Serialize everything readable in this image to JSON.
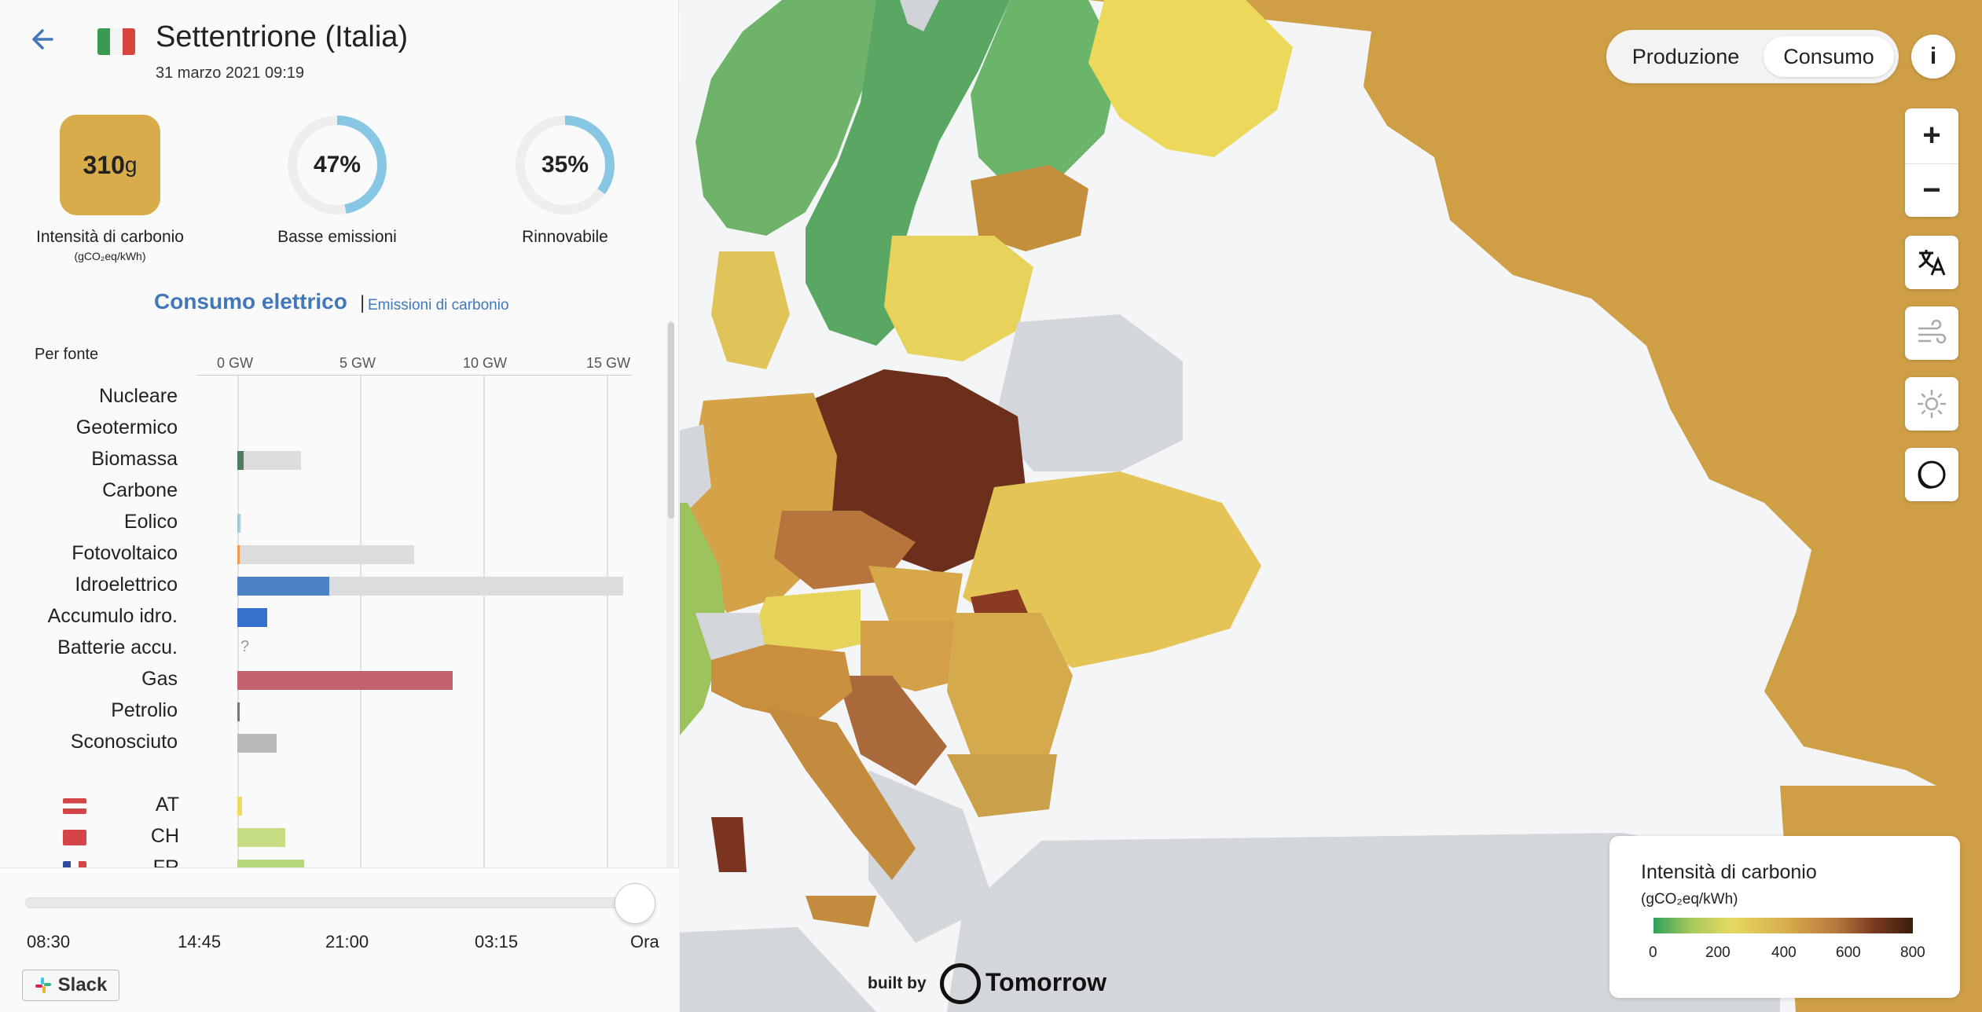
{
  "header": {
    "zone_title": "Settentrione (Italia)",
    "date": "31 marzo 2021 09:19"
  },
  "metrics": {
    "carbon_value": "310",
    "carbon_unit": "g",
    "carbon_label": "Intensità di carbonio",
    "carbon_sub": "(gCO₂eq/kWh)",
    "low_emissions_value": "47%",
    "low_emissions_fraction": 0.47,
    "low_emissions_label": "Basse emissioni",
    "renewable_value": "35%",
    "renewable_fraction": 0.35,
    "renewable_label": "Rinnovabile"
  },
  "tabs": {
    "consumo": "Consumo elettrico",
    "separator": "|",
    "emissioni": "Emissioni di carbonio"
  },
  "chart": {
    "per_fonte": "Per fonte",
    "axis_ticks": [
      "0 GW",
      "5 GW",
      "10 GW",
      "15 GW"
    ],
    "sources": [
      {
        "label": "Nucleare",
        "value_gw": 0,
        "capacity_gw": 0,
        "color": "#aeb800"
      },
      {
        "label": "Geotermico",
        "value_gw": 0,
        "capacity_gw": 0,
        "color": "#a45a1f"
      },
      {
        "label": "Biomassa",
        "value_gw": 0.25,
        "capacity_gw": 2.6,
        "color": "#4f7b5e"
      },
      {
        "label": "Carbone",
        "value_gw": 0,
        "capacity_gw": 0,
        "color": "#222222"
      },
      {
        "label": "Eolico",
        "value_gw": 0.1,
        "capacity_gw": 0.15,
        "color": "#9ac8d3"
      },
      {
        "label": "Fotovoltaico",
        "value_gw": 0.1,
        "capacity_gw": 7.2,
        "color": "#f09c4a"
      },
      {
        "label": "Idroelettrico",
        "value_gw": 3.75,
        "capacity_gw": 15.7,
        "color": "#4b83c4"
      },
      {
        "label": "Accumulo idro.",
        "value_gw": 1.2,
        "capacity_gw": 1.2,
        "color": "#3572cd"
      },
      {
        "label": "Batterie accu.",
        "value_gw": null,
        "capacity_gw": null,
        "color": "#b1b1b1",
        "unknown": "?"
      },
      {
        "label": "Gas",
        "value_gw": 8.75,
        "capacity_gw": 8.75,
        "color": "#c2626f"
      },
      {
        "label": "Petrolio",
        "value_gw": 0.05,
        "capacity_gw": 0.05,
        "color": "#777777"
      },
      {
        "label": "Sconosciuto",
        "value_gw": 1.6,
        "capacity_gw": 1.6,
        "color": "#b8b8b8"
      }
    ],
    "countries": [
      {
        "label": "AT",
        "value_gw": 0.2,
        "color": "#f0d95f"
      },
      {
        "label": "CH",
        "value_gw": 1.95,
        "color": "#c5dc82"
      },
      {
        "label": "FR",
        "value_gw": 2.7,
        "color": "#b7d77d"
      }
    ]
  },
  "timeline": {
    "labels": [
      "08:30",
      "14:45",
      "21:00",
      "03:15",
      "Ora"
    ],
    "position_fraction": 1.0
  },
  "slack": {
    "label": "Slack"
  },
  "map": {
    "mode_production": "Produzione",
    "mode_consumption": "Consumo",
    "info": "i",
    "zoom_in": "+",
    "zoom_out": "−",
    "legend_title": "Intensità di carbonio",
    "legend_unit": "(gCO₂eq/kWh)",
    "legend_ticks": [
      "0",
      "200",
      "400",
      "600",
      "800"
    ],
    "built_by": "built by",
    "brand": "Tomorrow"
  }
}
